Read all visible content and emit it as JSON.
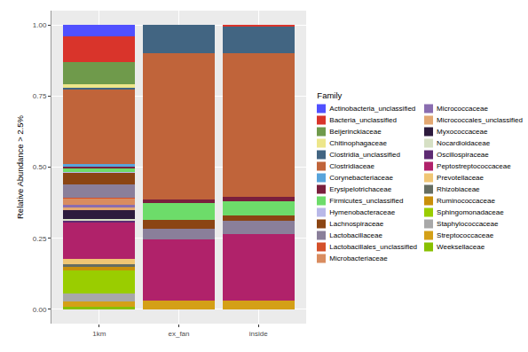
{
  "chart_data": {
    "type": "bar",
    "stacked": true,
    "y_label": "Relative Abundance > 2.5%",
    "categories": [
      "1km",
      "ex_fan",
      "inside"
    ],
    "ylim": [
      -0.05,
      1.05
    ],
    "yticks": [
      {
        "value": 0,
        "label": "0.00"
      },
      {
        "value": 0.25,
        "label": "0.25"
      },
      {
        "value": 0.5,
        "label": "0.50"
      },
      {
        "value": 0.75,
        "label": "0.75"
      },
      {
        "value": 1,
        "label": "1.00"
      }
    ],
    "grid": true,
    "legend": "right",
    "legend_title": "Family",
    "series": [
      {
        "name": "Actinobacteria_unclassified",
        "color": "#5050ff",
        "values": [
          0.04,
          0,
          0
        ]
      },
      {
        "name": "Bacteria_unclassified",
        "color": "#d9342b",
        "values": [
          0.09,
          0,
          0.005
        ]
      },
      {
        "name": "Beijerinckiaceae",
        "color": "#6f9a4b",
        "values": [
          0.08,
          0,
          0
        ]
      },
      {
        "name": "Chitinophagaceae",
        "color": "#ede68a",
        "values": [
          0.01,
          0,
          0
        ]
      },
      {
        "name": "Clostridia_unclassified",
        "color": "#426582",
        "values": [
          0.008,
          0.1,
          0.095
        ]
      },
      {
        "name": "Clostridiaceae",
        "color": "#c0643a",
        "values": [
          0.26,
          0.515,
          0.505
        ]
      },
      {
        "name": "Corynebacteriaceae",
        "color": "#58a4db",
        "values": [
          0.01,
          0,
          0
        ]
      },
      {
        "name": "Erysipelotrichaceae",
        "color": "#7a1f3d",
        "values": [
          0.008,
          0.01,
          0.015
        ]
      },
      {
        "name": "Firmicutes_unclassified",
        "color": "#6ddc6a",
        "values": [
          0.01,
          0.06,
          0.05
        ]
      },
      {
        "name": "Hymenobacteraceae",
        "color": "#b8b8e8",
        "values": [
          0.005,
          0,
          0
        ]
      },
      {
        "name": "Lachnospiraceae",
        "color": "#8b4513",
        "values": [
          0.04,
          0.03,
          0.02
        ]
      },
      {
        "name": "Lactobacillaceae",
        "color": "#8a7f9a",
        "values": [
          0.045,
          0.04,
          0.045
        ]
      },
      {
        "name": "Lactobacillales_unclassified",
        "color": "#d4502a",
        "values": [
          0.005,
          0,
          0
        ]
      },
      {
        "name": "Microbacteriaceae",
        "color": "#d98c5f",
        "values": [
          0.02,
          0,
          0
        ]
      },
      {
        "name": "Micrococcaceae",
        "color": "#8a6db0",
        "values": [
          0.01,
          0,
          0
        ]
      },
      {
        "name": "Micrococcales_unclassified",
        "color": "#e3a872",
        "values": [
          0.01,
          0,
          0
        ]
      },
      {
        "name": "Myxococcaceae",
        "color": "#2d1b3d",
        "values": [
          0.03,
          0,
          0
        ]
      },
      {
        "name": "Nocardioidaceae",
        "color": "#d6e0c4",
        "values": [
          0.008,
          0,
          0
        ]
      },
      {
        "name": "Oscillospiraceae",
        "color": "#5e2b73",
        "values": [
          0.005,
          0,
          0
        ]
      },
      {
        "name": "Peptostreptococcaceae",
        "color": "#b0226a",
        "values": [
          0.13,
          0.215,
          0.235
        ]
      },
      {
        "name": "Prevotellaceae",
        "color": "#f0c674",
        "values": [
          0.017,
          0,
          0
        ]
      },
      {
        "name": "Rhizobiaceae",
        "color": "#666e62",
        "values": [
          0.01,
          0,
          0
        ]
      },
      {
        "name": "Ruminococcaceae",
        "color": "#c9900a",
        "values": [
          0.012,
          0,
          0
        ]
      },
      {
        "name": "Sphingomonadaceae",
        "color": "#9acd00",
        "values": [
          0.08,
          0,
          0
        ]
      },
      {
        "name": "Staphylococcaceae",
        "color": "#a8a8a8",
        "values": [
          0.03,
          0,
          0
        ]
      },
      {
        "name": "Streptococcaceae",
        "color": "#d4a017",
        "values": [
          0.017,
          0.03,
          0.03
        ]
      },
      {
        "name": "Weeksellaceae",
        "color": "#88c000",
        "values": [
          0.01,
          0,
          0
        ]
      }
    ]
  }
}
